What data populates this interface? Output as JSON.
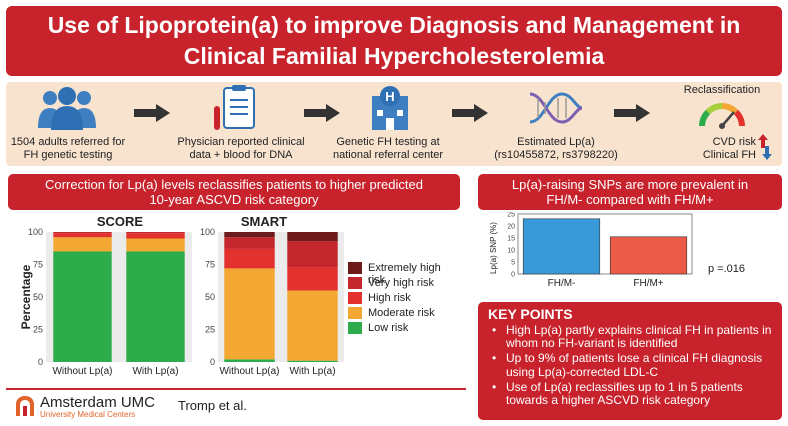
{
  "title": {
    "line1": "Use of Lipoprotein(a) to improve Diagnosis and Management in",
    "line2": "Clinical Familial Hypercholesterolemia"
  },
  "flow": {
    "steps": [
      {
        "line1": "1504 adults referred for",
        "line2": "FH genetic testing"
      },
      {
        "line1": "Physician reported clinical",
        "line2": "data + blood for DNA"
      },
      {
        "line1": "Genetic FH testing at",
        "line2": "national referral center"
      },
      {
        "line1": "Estimated Lp(a)",
        "line2": "(rs10455872, rs3798220)"
      },
      {
        "line1": "CVD risk",
        "line2": "Clinical FH"
      }
    ],
    "reclass_label": "Reclassification",
    "icons": [
      "people-icon",
      "clipboard-icon",
      "hospital-icon",
      "dna-icon",
      "gauge-icon"
    ]
  },
  "left_panel": {
    "header_line1": "Correction for Lp(a) levels reclassifies patients to higher predicted",
    "header_line2": "10-year ASCVD risk category"
  },
  "right_panel": {
    "header_line1": "Lp(a)-raising SNPs are more prevalent in",
    "header_line2": "FH/M- compared with FH/M+",
    "p_value": "p =.016"
  },
  "key_points": {
    "title": "KEY POINTS",
    "items": [
      "High Lp(a) partly explains clinical FH in patients in whom no FH-variant is identified",
      "Up to 9% of patients lose a clinical FH diagnosis using Lp(a)-corrected LDL-C",
      "Use of Lp(a) reclassifies up to 1 in 5 patients towards a higher ASCVD risk category"
    ]
  },
  "footer": {
    "logo_name": "Amsterdam UMC",
    "logo_sub": "University Medical Centers",
    "authors": "Tromp et al."
  },
  "colors": {
    "accent": "#c8232c",
    "band": "#f8e3cf",
    "low": "#2cac4b",
    "moderate": "#f2a833",
    "high": "#e3312e",
    "very_high": "#c3262c",
    "extreme": "#6d1a1b",
    "bar_fhm_minus": "#3a9ad9",
    "bar_fhm_plus": "#ec5a48"
  },
  "chart_data": [
    {
      "type": "bar",
      "stacked": true,
      "title": "SCORE",
      "ylabel": "Percentage",
      "categories": [
        "Without Lp(a)",
        "With Lp(a)"
      ],
      "yticks": [
        "0",
        "25",
        "50",
        "75",
        "100"
      ],
      "ylim": [
        0,
        100
      ],
      "series": [
        {
          "name": "Low risk",
          "values": [
            85,
            85
          ]
        },
        {
          "name": "Moderate risk",
          "values": [
            11,
            10
          ]
        },
        {
          "name": "High risk",
          "values": [
            3,
            4
          ]
        },
        {
          "name": "Very high risk",
          "values": [
            1,
            1
          ]
        },
        {
          "name": "Extremely high risk",
          "values": [
            0,
            0
          ]
        }
      ]
    },
    {
      "type": "bar",
      "stacked": true,
      "title": "SMART",
      "categories": [
        "Without Lp(a)",
        "With Lp(a)"
      ],
      "yticks": [
        "0",
        "25",
        "50",
        "75",
        "100"
      ],
      "ylim": [
        0,
        100
      ],
      "series": [
        {
          "name": "Low risk",
          "values": [
            2,
            1
          ]
        },
        {
          "name": "Moderate risk",
          "values": [
            70,
            54
          ]
        },
        {
          "name": "High risk",
          "values": [
            15,
            18
          ]
        },
        {
          "name": "Very high risk",
          "values": [
            9,
            20
          ]
        },
        {
          "name": "Extremely high risk",
          "values": [
            4,
            7
          ]
        }
      ],
      "legend_position": "right"
    },
    {
      "type": "bar",
      "ylabel": "Lp(a) SNP (%)",
      "categories": [
        "FH/M-",
        "FH/M+"
      ],
      "values": [
        23,
        15.5
      ],
      "yticks": [
        "0",
        "5",
        "10",
        "15",
        "20",
        "25"
      ],
      "ylim": [
        0,
        25
      ]
    }
  ]
}
